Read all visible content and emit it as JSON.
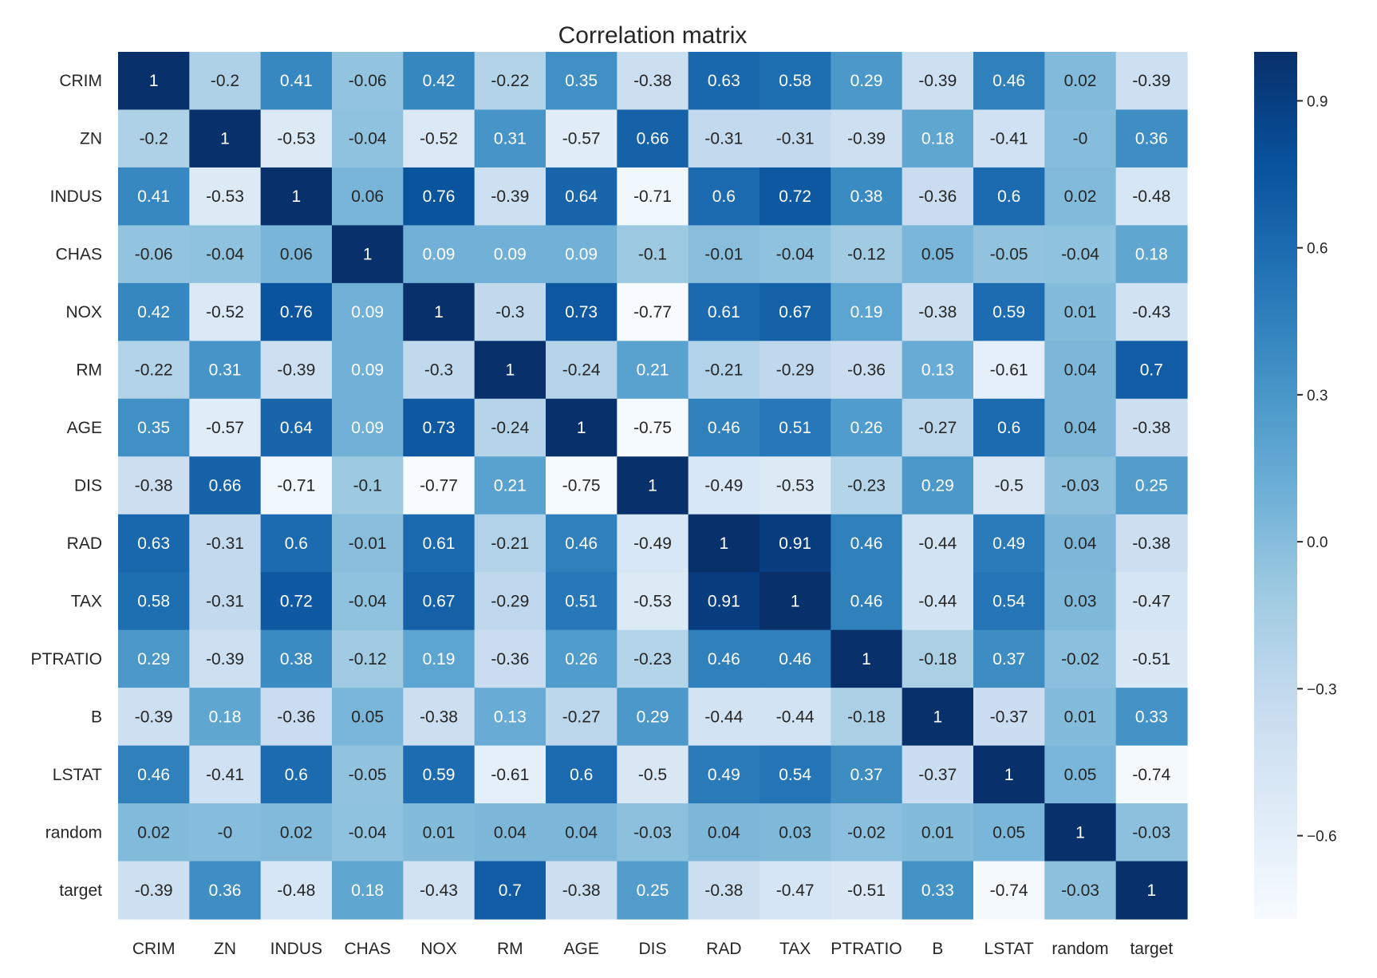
{
  "chart_data": {
    "type": "heatmap",
    "title": "Correlation matrix",
    "xlabel": "",
    "ylabel": "",
    "colormap": "Blues",
    "vmin": -0.77,
    "vmax": 1,
    "colormap_stops": [
      "#f7fbff",
      "#deebf7",
      "#c6dbef",
      "#9ecae1",
      "#6baed6",
      "#4292c6",
      "#2171b5",
      "#08519c",
      "#08306b"
    ],
    "annot_light_color": "#ffffff",
    "annot_dark_color": "#262626",
    "x_labels": [
      "CRIM",
      "ZN",
      "INDUS",
      "CHAS",
      "NOX",
      "RM",
      "AGE",
      "DIS",
      "RAD",
      "TAX",
      "PTRATIO",
      "B",
      "LSTAT",
      "random",
      "target"
    ],
    "y_labels": [
      "CRIM",
      "ZN",
      "INDUS",
      "CHAS",
      "NOX",
      "RM",
      "AGE",
      "DIS",
      "RAD",
      "TAX",
      "PTRATIO",
      "B",
      "LSTAT",
      "random",
      "target"
    ],
    "values": [
      [
        1,
        -0.2,
        0.41,
        -0.06,
        0.42,
        -0.22,
        0.35,
        -0.38,
        0.63,
        0.58,
        0.29,
        -0.39,
        0.46,
        0.02,
        -0.39
      ],
      [
        -0.2,
        1,
        -0.53,
        -0.04,
        -0.52,
        0.31,
        -0.57,
        0.66,
        -0.31,
        -0.31,
        -0.39,
        0.18,
        -0.41,
        -0.0,
        0.36
      ],
      [
        0.41,
        -0.53,
        1,
        0.06,
        0.76,
        -0.39,
        0.64,
        -0.71,
        0.6,
        0.72,
        0.38,
        -0.36,
        0.6,
        0.02,
        -0.48
      ],
      [
        -0.06,
        -0.04,
        0.06,
        1,
        0.09,
        0.09,
        0.09,
        -0.1,
        -0.01,
        -0.04,
        -0.12,
        0.05,
        -0.05,
        -0.04,
        0.18
      ],
      [
        0.42,
        -0.52,
        0.76,
        0.09,
        1,
        -0.3,
        0.73,
        -0.77,
        0.61,
        0.67,
        0.19,
        -0.38,
        0.59,
        0.01,
        -0.43
      ],
      [
        -0.22,
        0.31,
        -0.39,
        0.09,
        -0.3,
        1,
        -0.24,
        0.21,
        -0.21,
        -0.29,
        -0.36,
        0.13,
        -0.61,
        0.04,
        0.7
      ],
      [
        0.35,
        -0.57,
        0.64,
        0.09,
        0.73,
        -0.24,
        1,
        -0.75,
        0.46,
        0.51,
        0.26,
        -0.27,
        0.6,
        0.04,
        -0.38
      ],
      [
        -0.38,
        0.66,
        -0.71,
        -0.1,
        -0.77,
        0.21,
        -0.75,
        1,
        -0.49,
        -0.53,
        -0.23,
        0.29,
        -0.5,
        -0.03,
        0.25
      ],
      [
        0.63,
        -0.31,
        0.6,
        -0.01,
        0.61,
        -0.21,
        0.46,
        -0.49,
        1,
        0.91,
        0.46,
        -0.44,
        0.49,
        0.04,
        -0.38
      ],
      [
        0.58,
        -0.31,
        0.72,
        -0.04,
        0.67,
        -0.29,
        0.51,
        -0.53,
        0.91,
        1,
        0.46,
        -0.44,
        0.54,
        0.03,
        -0.47
      ],
      [
        0.29,
        -0.39,
        0.38,
        -0.12,
        0.19,
        -0.36,
        0.26,
        -0.23,
        0.46,
        0.46,
        1,
        -0.18,
        0.37,
        -0.02,
        -0.51
      ],
      [
        -0.39,
        0.18,
        -0.36,
        0.05,
        -0.38,
        0.13,
        -0.27,
        0.29,
        -0.44,
        -0.44,
        -0.18,
        1,
        -0.37,
        0.01,
        0.33
      ],
      [
        0.46,
        -0.41,
        0.6,
        -0.05,
        0.59,
        -0.61,
        0.6,
        -0.5,
        0.49,
        0.54,
        0.37,
        -0.37,
        1,
        0.05,
        -0.74
      ],
      [
        0.02,
        -0.0,
        0.02,
        -0.04,
        0.01,
        0.04,
        0.04,
        -0.03,
        0.04,
        0.03,
        -0.02,
        0.01,
        0.05,
        1,
        -0.03
      ],
      [
        -0.39,
        0.36,
        -0.48,
        0.18,
        -0.43,
        0.7,
        -0.38,
        0.25,
        -0.38,
        -0.47,
        -0.51,
        0.33,
        -0.74,
        -0.03,
        1
      ]
    ],
    "annotations": [
      [
        "1",
        "-0.2",
        "0.41",
        "-0.06",
        "0.42",
        "-0.22",
        "0.35",
        "-0.38",
        "0.63",
        "0.58",
        "0.29",
        "-0.39",
        "0.46",
        "0.02",
        "-0.39"
      ],
      [
        "-0.2",
        "1",
        "-0.53",
        "-0.04",
        "-0.52",
        "0.31",
        "-0.57",
        "0.66",
        "-0.31",
        "-0.31",
        "-0.39",
        "0.18",
        "-0.41",
        "-0",
        "0.36"
      ],
      [
        "0.41",
        "-0.53",
        "1",
        "0.06",
        "0.76",
        "-0.39",
        "0.64",
        "-0.71",
        "0.6",
        "0.72",
        "0.38",
        "-0.36",
        "0.6",
        "0.02",
        "-0.48"
      ],
      [
        "-0.06",
        "-0.04",
        "0.06",
        "1",
        "0.09",
        "0.09",
        "0.09",
        "-0.1",
        "-0.01",
        "-0.04",
        "-0.12",
        "0.05",
        "-0.05",
        "-0.04",
        "0.18"
      ],
      [
        "0.42",
        "-0.52",
        "0.76",
        "0.09",
        "1",
        "-0.3",
        "0.73",
        "-0.77",
        "0.61",
        "0.67",
        "0.19",
        "-0.38",
        "0.59",
        "0.01",
        "-0.43"
      ],
      [
        "-0.22",
        "0.31",
        "-0.39",
        "0.09",
        "-0.3",
        "1",
        "-0.24",
        "0.21",
        "-0.21",
        "-0.29",
        "-0.36",
        "0.13",
        "-0.61",
        "0.04",
        "0.7"
      ],
      [
        "0.35",
        "-0.57",
        "0.64",
        "0.09",
        "0.73",
        "-0.24",
        "1",
        "-0.75",
        "0.46",
        "0.51",
        "0.26",
        "-0.27",
        "0.6",
        "0.04",
        "-0.38"
      ],
      [
        "-0.38",
        "0.66",
        "-0.71",
        "-0.1",
        "-0.77",
        "0.21",
        "-0.75",
        "1",
        "-0.49",
        "-0.53",
        "-0.23",
        "0.29",
        "-0.5",
        "-0.03",
        "0.25"
      ],
      [
        "0.63",
        "-0.31",
        "0.6",
        "-0.01",
        "0.61",
        "-0.21",
        "0.46",
        "-0.49",
        "1",
        "0.91",
        "0.46",
        "-0.44",
        "0.49",
        "0.04",
        "-0.38"
      ],
      [
        "0.58",
        "-0.31",
        "0.72",
        "-0.04",
        "0.67",
        "-0.29",
        "0.51",
        "-0.53",
        "0.91",
        "1",
        "0.46",
        "-0.44",
        "0.54",
        "0.03",
        "-0.47"
      ],
      [
        "0.29",
        "-0.39",
        "0.38",
        "-0.12",
        "0.19",
        "-0.36",
        "0.26",
        "-0.23",
        "0.46",
        "0.46",
        "1",
        "-0.18",
        "0.37",
        "-0.02",
        "-0.51"
      ],
      [
        "-0.39",
        "0.18",
        "-0.36",
        "0.05",
        "-0.38",
        "0.13",
        "-0.27",
        "0.29",
        "-0.44",
        "-0.44",
        "-0.18",
        "1",
        "-0.37",
        "0.01",
        "0.33"
      ],
      [
        "0.46",
        "-0.41",
        "0.6",
        "-0.05",
        "0.59",
        "-0.61",
        "0.6",
        "-0.5",
        "0.49",
        "0.54",
        "0.37",
        "-0.37",
        "1",
        "0.05",
        "-0.74"
      ],
      [
        "0.02",
        "-0",
        "0.02",
        "-0.04",
        "0.01",
        "0.04",
        "0.04",
        "-0.03",
        "0.04",
        "0.03",
        "-0.02",
        "0.01",
        "0.05",
        "1",
        "-0.03"
      ],
      [
        "-0.39",
        "0.36",
        "-0.48",
        "0.18",
        "-0.43",
        "0.7",
        "-0.38",
        "0.25",
        "-0.38",
        "-0.47",
        "-0.51",
        "0.33",
        "-0.74",
        "-0.03",
        "1"
      ]
    ],
    "colorbar": {
      "ticks": [
        0.9,
        0.6,
        0.3,
        0.0,
        -0.3,
        -0.6
      ],
      "tick_labels": [
        "0.9",
        "0.6",
        "0.3",
        "0.0",
        "−0.3",
        "−0.6"
      ],
      "location": "right"
    },
    "grid": false
  }
}
